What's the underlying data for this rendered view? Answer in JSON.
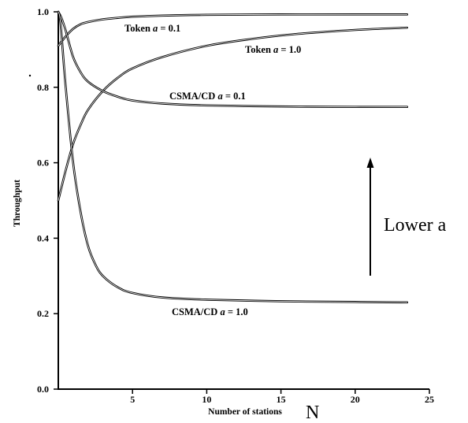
{
  "chart_data": {
    "type": "line",
    "title": "",
    "xlabel": "Number of stations",
    "xlabel_extra": "N",
    "ylabel": "Throughput",
    "xlim": [
      0,
      25
    ],
    "ylim": [
      0,
      1.0
    ],
    "x_ticks": [
      5,
      10,
      15,
      20,
      25
    ],
    "x_tick_labels": [
      "5",
      "10",
      "15",
      "20",
      "25"
    ],
    "y_ticks": [
      0.0,
      0.2,
      0.4,
      0.6,
      0.8,
      1.0
    ],
    "y_tick_labels": [
      "0.0",
      "0.2",
      "0.4",
      "0.6",
      "0.8",
      "1.0"
    ],
    "grid": false,
    "annotation": {
      "text": "Lower a",
      "arrow_direction": "up"
    },
    "series": [
      {
        "name": "Token a = 0.1",
        "label_prefix": "Token ",
        "label_var": "a",
        "label_suffix": " = 0.1",
        "x": [
          0,
          0.5,
          1,
          1.5,
          2,
          3,
          4,
          5,
          7,
          10,
          15,
          20,
          23.5
        ],
        "y": [
          0.91,
          0.935,
          0.955,
          0.967,
          0.973,
          0.98,
          0.984,
          0.987,
          0.99,
          0.992,
          0.993,
          0.993,
          0.993
        ]
      },
      {
        "name": "Token a = 1.0",
        "label_prefix": "Token ",
        "label_var": "a",
        "label_suffix": " = 1.0",
        "x": [
          0,
          0.5,
          1,
          1.5,
          2,
          3,
          4,
          5,
          7,
          10,
          13,
          16,
          20,
          23.5
        ],
        "y": [
          0.5,
          0.58,
          0.65,
          0.7,
          0.74,
          0.79,
          0.825,
          0.85,
          0.88,
          0.91,
          0.928,
          0.941,
          0.952,
          0.958
        ]
      },
      {
        "name": "CSMA/CD a = 0.1",
        "label_prefix": "CSMA/CD ",
        "label_var": "a",
        "label_suffix": " = 0.1",
        "x": [
          0,
          0.2,
          0.5,
          1,
          1.5,
          2,
          3,
          4,
          5,
          7,
          10,
          15,
          20,
          23.5
        ],
        "y": [
          1.0,
          0.985,
          0.95,
          0.88,
          0.84,
          0.815,
          0.79,
          0.775,
          0.765,
          0.757,
          0.752,
          0.749,
          0.748,
          0.748
        ]
      },
      {
        "name": "CSMA/CD a = 1.0",
        "label_prefix": "CSMA/CD ",
        "label_var": "a",
        "label_suffix": " = 1.0",
        "x": [
          0,
          0.15,
          0.5,
          1,
          1.5,
          2,
          2.5,
          3,
          4,
          5,
          7,
          10,
          15,
          20,
          23.5
        ],
        "y": [
          1.0,
          0.97,
          0.8,
          0.6,
          0.47,
          0.38,
          0.33,
          0.3,
          0.27,
          0.255,
          0.243,
          0.237,
          0.233,
          0.231,
          0.23
        ]
      }
    ]
  }
}
